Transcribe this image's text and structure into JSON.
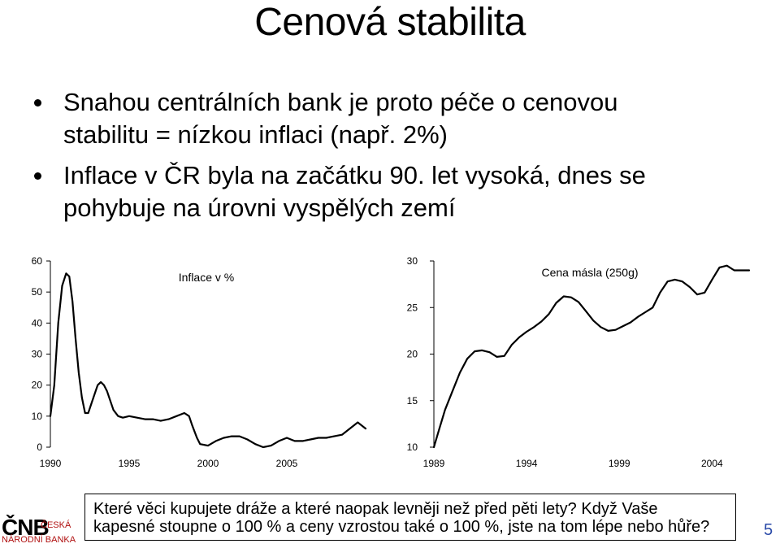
{
  "slide": {
    "title": "Cenová stabilita",
    "bullets": [
      {
        "line1": "Snahou centrálních bank je proto péče o cenovou",
        "line2": "stabilitu = nízkou inflaci (např. 2%)"
      },
      {
        "line1": "Inflace v ČR byla na začátku 90. let vysoká, dnes se",
        "line2": "pohybuje na úrovni vyspělých zemí"
      }
    ],
    "question_line1": "Které věci kupujete dráže a které naopak levněji než před pěti lety? Když Vaše",
    "question_line2": "kapesné stoupne o 100 % a ceny vzrostou také o 100 %, jste na tom lépe nebo hůře?",
    "page_number": "5",
    "logo": {
      "mark": "ČNB",
      "line1": "ČESKÁ",
      "line2": "NÁRODNÍ BANKA",
      "color": "#b01010"
    },
    "page_number_color": "#2a4aa8"
  },
  "chart_data": [
    {
      "type": "line",
      "title": "Inflace v %",
      "ylim": [
        0,
        60
      ],
      "yticks": [
        0,
        10,
        20,
        30,
        40,
        50,
        60
      ],
      "xlim": [
        1990,
        2010
      ],
      "xticks": [
        "1990",
        "1995",
        "2000",
        "2005"
      ],
      "grid": false,
      "color": "#000000",
      "x": [
        1990.0,
        1990.25,
        1990.5,
        1990.75,
        1991.0,
        1991.2,
        1991.4,
        1991.6,
        1991.8,
        1992.0,
        1992.2,
        1992.4,
        1992.6,
        1992.8,
        1993.0,
        1993.2,
        1993.4,
        1993.6,
        1993.8,
        1994.0,
        1994.3,
        1994.6,
        1995.0,
        1995.5,
        1996.0,
        1996.5,
        1997.0,
        1997.5,
        1998.0,
        1998.5,
        1998.8,
        1999.0,
        1999.3,
        1999.5,
        2000.0,
        2000.5,
        2001.0,
        2001.5,
        2002.0,
        2002.5,
        2003.0,
        2003.5,
        2004.0,
        2004.5,
        2005.0,
        2005.5,
        2006.0,
        2006.5,
        2007.0,
        2007.5,
        2008.0,
        2008.5,
        2009.0,
        2009.5,
        2010.0
      ],
      "y": [
        10,
        20,
        40,
        52,
        56,
        55,
        47,
        35,
        24,
        16,
        11,
        11,
        14,
        17,
        20,
        21,
        20,
        18,
        15,
        12,
        10,
        9.5,
        10,
        9.5,
        9,
        9,
        8.5,
        9,
        10,
        11,
        10,
        7,
        3,
        1,
        0.5,
        2,
        3,
        3.5,
        3.5,
        2.5,
        1,
        0,
        0.5,
        2,
        3,
        2,
        2,
        2.5,
        3,
        3,
        3.5,
        4,
        6,
        8,
        6
      ]
    },
    {
      "type": "line",
      "title": "Cena másla (250g)",
      "ylim": [
        10,
        30
      ],
      "yticks": [
        10,
        15,
        20,
        25,
        30
      ],
      "xlim": [
        1989,
        2006
      ],
      "xticks": [
        "1989",
        "1994",
        "1999",
        "2004"
      ],
      "grid": false,
      "color": "#000000",
      "x": [
        1989.0,
        1989.3,
        1989.6,
        1990.0,
        1990.4,
        1990.8,
        1991.2,
        1991.6,
        1992.0,
        1992.4,
        1992.8,
        1993.2,
        1993.6,
        1994.0,
        1994.4,
        1994.8,
        1995.2,
        1995.6,
        1996.0,
        1996.4,
        1996.8,
        1997.2,
        1997.6,
        1998.0,
        1998.4,
        1998.8,
        1999.2,
        1999.6,
        2000.0,
        2000.4,
        2000.8,
        2001.2,
        2001.6,
        2002.0,
        2002.4,
        2002.8,
        2003.2,
        2003.6,
        2004.0,
        2004.4,
        2004.8,
        2005.2,
        2005.6,
        2006.0
      ],
      "y": [
        10,
        12,
        14,
        16,
        18,
        19.5,
        20.3,
        20.4,
        20.2,
        19.7,
        19.8,
        21,
        21.8,
        22.4,
        22.9,
        23.5,
        24.3,
        25.5,
        26.2,
        26.1,
        25.6,
        24.6,
        23.6,
        22.9,
        22.5,
        22.6,
        23.0,
        23.4,
        24.0,
        24.5,
        25.0,
        26.6,
        27.8,
        28.0,
        27.8,
        27.2,
        26.4,
        26.6,
        28.0,
        29.3,
        29.5,
        29.0,
        29.0,
        29.0
      ]
    }
  ]
}
